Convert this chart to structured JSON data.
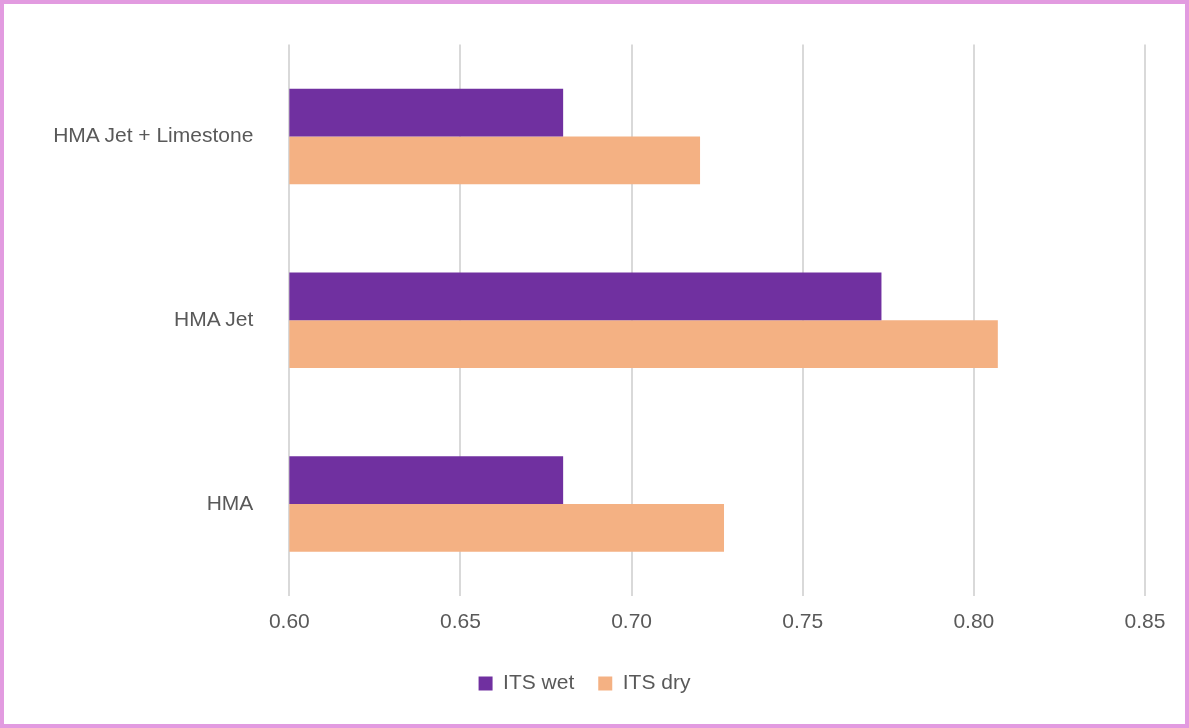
{
  "chart_data": {
    "type": "bar",
    "orientation": "horizontal",
    "categories": [
      "HMA Jet + Limestone",
      "HMA Jet",
      "HMA"
    ],
    "series": [
      {
        "name": "ITS wet",
        "color": "#7030a0",
        "values": [
          0.68,
          0.773,
          0.68
        ]
      },
      {
        "name": "ITS dry",
        "color": "#f4b183",
        "values": [
          0.72,
          0.807,
          0.727
        ]
      }
    ],
    "xlim": [
      0.6,
      0.85
    ],
    "xticks": [
      {
        "value": 0.6,
        "label": "0.60"
      },
      {
        "value": 0.65,
        "label": "0.65"
      },
      {
        "value": 0.7,
        "label": "0.70"
      },
      {
        "value": 0.75,
        "label": "0.75"
      },
      {
        "value": 0.8,
        "label": "0.80"
      },
      {
        "value": 0.85,
        "label": "0.85"
      }
    ],
    "grid": "x",
    "legend": "bottom"
  }
}
